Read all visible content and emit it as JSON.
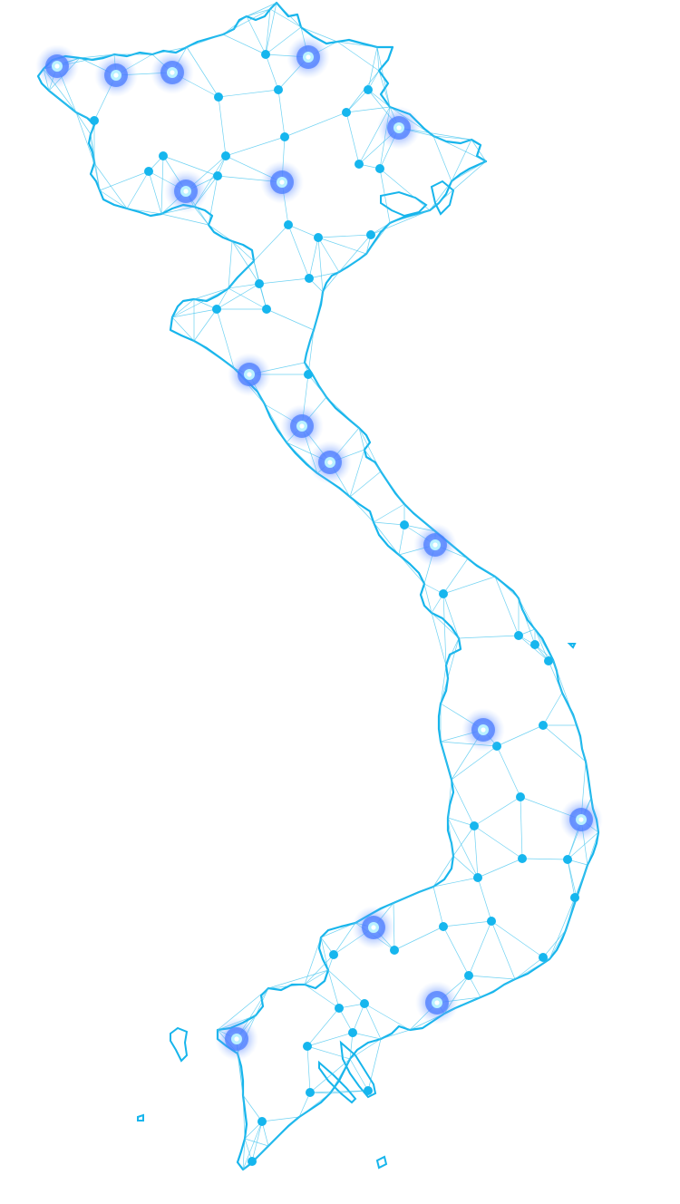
{
  "map": {
    "colors": {
      "background": "#ffffff",
      "outline": "#17b5ec",
      "mesh": "#3fc3ee",
      "node": "#16b6ee",
      "glow_outer": "#4d7dff",
      "glow_inner": "#b9f1ff"
    },
    "node_icon": "dot",
    "glow_icon": "glowing-dot"
  }
}
